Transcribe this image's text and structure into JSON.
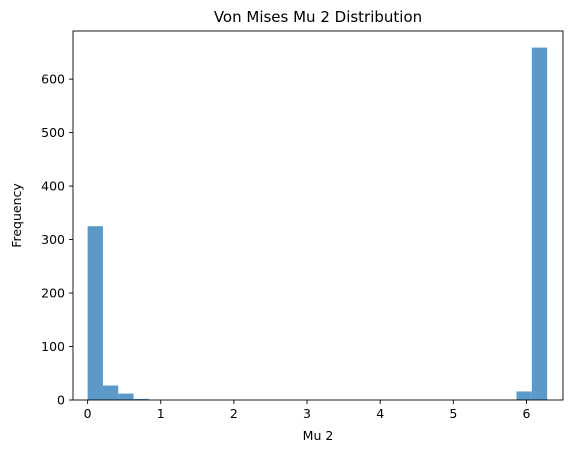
{
  "chart_data": {
    "type": "bar",
    "title": "Von Mises Mu 2 Distribution",
    "xlabel": "Mu 2",
    "ylabel": "Frequency",
    "xlim": [
      -0.2,
      6.5
    ],
    "ylim": [
      0,
      690
    ],
    "xticks": [
      "0",
      "1",
      "2",
      "3",
      "4",
      "5",
      "6"
    ],
    "yticks": [
      "0",
      "100",
      "200",
      "300",
      "400",
      "500",
      "600"
    ],
    "bar_color": "#5b9ac8",
    "bin_edges": [
      0,
      0.2094,
      0.4189,
      0.6283,
      0.8378,
      1.0472,
      1.2566,
      1.4661,
      1.6755,
      1.885,
      2.0944,
      2.3038,
      2.5133,
      2.7227,
      2.9322,
      3.1416,
      3.351,
      3.5605,
      3.7699,
      3.9794,
      4.1888,
      4.3982,
      4.6077,
      4.8171,
      5.0265,
      5.236,
      5.4454,
      5.6549,
      5.8643,
      6.0737,
      6.2832
    ],
    "values": [
      325,
      27,
      12,
      2,
      0,
      0,
      0,
      0,
      0,
      0,
      0,
      0,
      0,
      0,
      0,
      0,
      0,
      0,
      0,
      0,
      0,
      0,
      0,
      0,
      0,
      0,
      0,
      0,
      16,
      659
    ]
  }
}
